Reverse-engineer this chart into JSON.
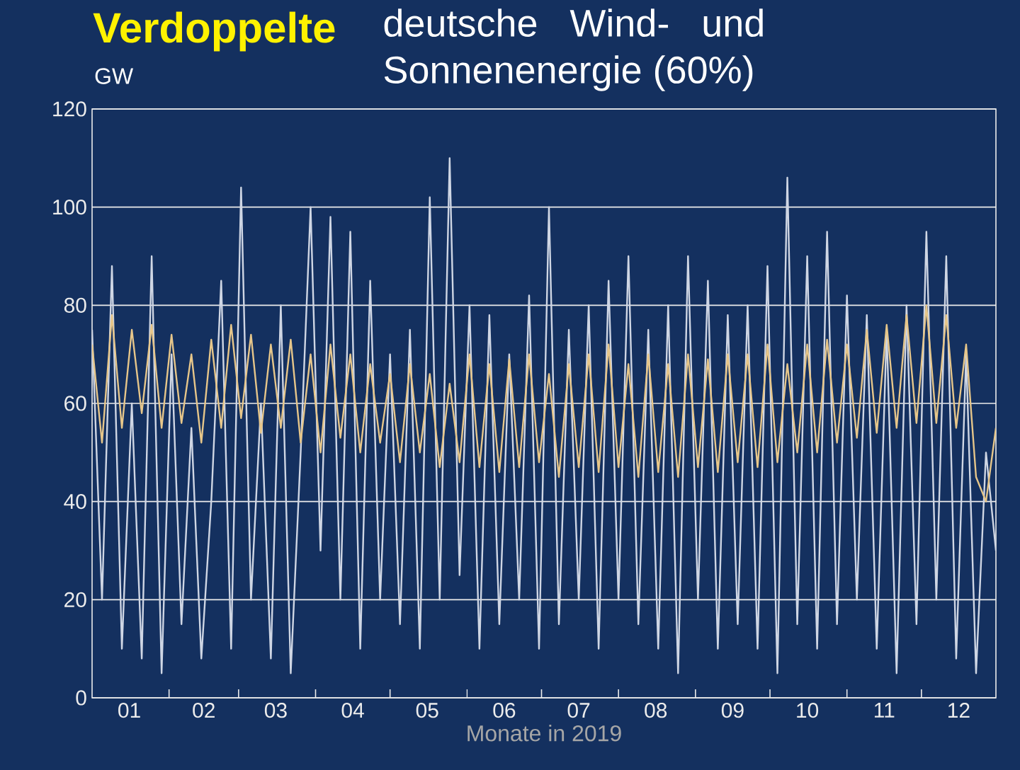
{
  "chart_data": {
    "type": "line",
    "title": "Verdoppelte",
    "subtitle": "deutsche Wind- und Sonnenenergie (60%)",
    "ylabel": "GW",
    "xlabel": "Monate in 2019",
    "xlim": [
      "2019-01-01",
      "2019-12-31"
    ],
    "ylim": [
      0,
      120
    ],
    "yticks": [
      0,
      20,
      40,
      60,
      80,
      100,
      120
    ],
    "xticks": [
      {
        "value": "2019-01-16",
        "label": "01"
      },
      {
        "value": "2019-02-15",
        "label": "02"
      },
      {
        "value": "2019-03-16",
        "label": "03"
      },
      {
        "value": "2019-04-16",
        "label": "04"
      },
      {
        "value": "2019-05-16",
        "label": "05"
      },
      {
        "value": "2019-06-16",
        "label": "06"
      },
      {
        "value": "2019-07-16",
        "label": "07"
      },
      {
        "value": "2019-08-16",
        "label": "08"
      },
      {
        "value": "2019-09-16",
        "label": "09"
      },
      {
        "value": "2019-10-16",
        "label": "10"
      },
      {
        "value": "2019-11-16",
        "label": "11"
      },
      {
        "value": "2019-12-16",
        "label": "12"
      },
      {
        "value": "2019-02-01",
        "label": null
      },
      {
        "value": "2019-03-01",
        "label": null
      },
      {
        "value": "2019-04-01",
        "label": null
      },
      {
        "value": "2019-05-01",
        "label": null
      },
      {
        "value": "2019-06-01",
        "label": null
      },
      {
        "value": "2019-07-01",
        "label": null
      },
      {
        "value": "2019-08-01",
        "label": null
      },
      {
        "value": "2019-09-01",
        "label": null
      },
      {
        "value": "2019-10-01",
        "label": null
      },
      {
        "value": "2019-11-01",
        "label": null
      },
      {
        "value": "2019-12-01",
        "label": null
      }
    ],
    "x": [
      "2019-01-01",
      "2019-01-05",
      "2019-01-09",
      "2019-01-13",
      "2019-01-17",
      "2019-01-21",
      "2019-01-25",
      "2019-01-29",
      "2019-02-02",
      "2019-02-06",
      "2019-02-10",
      "2019-02-14",
      "2019-02-18",
      "2019-02-22",
      "2019-02-26",
      "2019-03-02",
      "2019-03-06",
      "2019-03-10",
      "2019-03-14",
      "2019-03-18",
      "2019-03-22",
      "2019-03-26",
      "2019-03-30",
      "2019-04-03",
      "2019-04-07",
      "2019-04-11",
      "2019-04-15",
      "2019-04-19",
      "2019-04-23",
      "2019-04-27",
      "2019-05-01",
      "2019-05-05",
      "2019-05-09",
      "2019-05-13",
      "2019-05-17",
      "2019-05-21",
      "2019-05-25",
      "2019-05-29",
      "2019-06-02",
      "2019-06-06",
      "2019-06-10",
      "2019-06-14",
      "2019-06-18",
      "2019-06-22",
      "2019-06-26",
      "2019-06-30",
      "2019-07-04",
      "2019-07-08",
      "2019-07-12",
      "2019-07-16",
      "2019-07-20",
      "2019-07-24",
      "2019-07-28",
      "2019-08-01",
      "2019-08-05",
      "2019-08-09",
      "2019-08-13",
      "2019-08-17",
      "2019-08-21",
      "2019-08-25",
      "2019-08-29",
      "2019-09-02",
      "2019-09-06",
      "2019-09-10",
      "2019-09-14",
      "2019-09-18",
      "2019-09-22",
      "2019-09-26",
      "2019-09-30",
      "2019-10-04",
      "2019-10-08",
      "2019-10-12",
      "2019-10-16",
      "2019-10-20",
      "2019-10-24",
      "2019-10-28",
      "2019-11-01",
      "2019-11-05",
      "2019-11-09",
      "2019-11-13",
      "2019-11-17",
      "2019-11-21",
      "2019-11-25",
      "2019-11-29",
      "2019-12-03",
      "2019-12-07",
      "2019-12-11",
      "2019-12-15",
      "2019-12-19",
      "2019-12-23",
      "2019-12-27",
      "2019-12-31"
    ],
    "grid": "y",
    "line_style": "solid",
    "series": [
      {
        "color": "#cfd6e4",
        "values": [
          75,
          20,
          88,
          10,
          60,
          8,
          90,
          5,
          70,
          15,
          55,
          8,
          40,
          85,
          10,
          104,
          20,
          60,
          8,
          80,
          5,
          50,
          100,
          30,
          98,
          20,
          95,
          10,
          85,
          20,
          70,
          15,
          75,
          10,
          102,
          20,
          110,
          25,
          80,
          10,
          78,
          15,
          70,
          20,
          82,
          10,
          100,
          15,
          75,
          20,
          80,
          10,
          85,
          20,
          90,
          15,
          75,
          10,
          80,
          5,
          90,
          20,
          85,
          10,
          78,
          15,
          80,
          10,
          88,
          5,
          106,
          15,
          90,
          10,
          95,
          15,
          82,
          20,
          78,
          10,
          75,
          5,
          80,
          15,
          95,
          20,
          90,
          8,
          70,
          5,
          50,
          30
        ]
      },
      {
        "color": "#e6c68a",
        "values": [
          72,
          52,
          78,
          55,
          75,
          58,
          76,
          55,
          74,
          56,
          70,
          52,
          73,
          55,
          76,
          57,
          74,
          54,
          72,
          55,
          73,
          52,
          70,
          50,
          72,
          53,
          70,
          50,
          68,
          52,
          66,
          48,
          68,
          50,
          66,
          47,
          64,
          48,
          70,
          47,
          68,
          46,
          69,
          47,
          70,
          48,
          66,
          45,
          68,
          47,
          70,
          46,
          72,
          47,
          68,
          45,
          70,
          46,
          68,
          45,
          70,
          47,
          69,
          46,
          70,
          48,
          70,
          47,
          72,
          48,
          68,
          50,
          72,
          50,
          73,
          52,
          72,
          53,
          75,
          54,
          76,
          55,
          78,
          56,
          80,
          56,
          78,
          55,
          72,
          45,
          40,
          55
        ]
      }
    ]
  }
}
